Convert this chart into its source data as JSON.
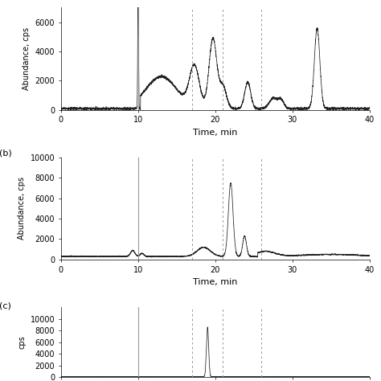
{
  "xlim": [
    0,
    40
  ],
  "xticks": [
    0,
    10,
    20,
    30,
    40
  ],
  "vlines": [
    10,
    17,
    21,
    26
  ],
  "vline_solid": 10,
  "xlabel": "Time, min",
  "ylabel": "Abundance, cps",
  "ylabel_c": "cps",
  "panel_labels": [
    "(b)",
    "(c)"
  ],
  "panel_a_ylim": [
    0,
    7000
  ],
  "panel_a_yticks": [
    0,
    2000,
    4000,
    6000
  ],
  "panel_b_ylim": [
    0,
    10000
  ],
  "panel_b_yticks": [
    0,
    2000,
    4000,
    6000,
    8000,
    10000
  ],
  "panel_c_ylim": [
    0,
    12000
  ],
  "panel_c_yticks": [
    0,
    2000,
    4000,
    6000,
    8000,
    10000
  ],
  "line_color": "#222222",
  "vline_color": "#999999",
  "bg_color": "#ffffff",
  "font_size": 7,
  "label_font_size": 8,
  "tick_font_size": 7
}
